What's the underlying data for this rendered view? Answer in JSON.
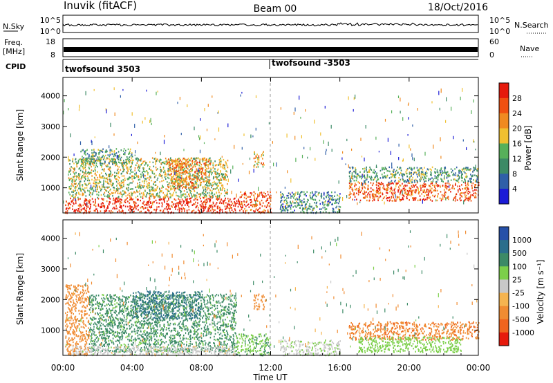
{
  "header": {
    "station": "Inuvik (fitACF)",
    "beam": "Beam 00",
    "date": "18/Oct/2016"
  },
  "strips": {
    "nsky_label": "N.Sky",
    "nsky_ticks": [
      "10^5",
      "10^0"
    ],
    "nsearch_label": "N.Search",
    "freq_label_1": "Freq.",
    "freq_label_2": "[MHz]",
    "freq_ticks": [
      "18",
      "8"
    ],
    "nave_label": "Nave",
    "nave_ticks": [
      "60",
      "0"
    ],
    "cpid_label": "CPID",
    "cpid_segments": [
      "twofsound 3503",
      "twofsound -3503"
    ]
  },
  "colors": {
    "power": [
      "#1b1bd6",
      "#2f5fa8",
      "#3c8a66",
      "#57b05a",
      "#f0c030",
      "#f08a20",
      "#f05010",
      "#e61a0c"
    ],
    "velocity": [
      "#e61a0c",
      "#f0641e",
      "#f08c32",
      "#f5b450",
      "#c8c8c8",
      "#7ccf4a",
      "#3c8a66",
      "#2a6e8c",
      "#2650a8"
    ]
  },
  "chart_data": [
    {
      "type": "heatmap",
      "name": "power",
      "ylabel": "Slant Range [km]",
      "ylim": [
        180,
        4600
      ],
      "yticks": [
        1000,
        2000,
        3000,
        4000
      ],
      "xlim": [
        0,
        24
      ],
      "xticks": [
        "00:00",
        "04:00",
        "08:00",
        "12:00",
        "16:00",
        "20:00",
        "00:00"
      ],
      "colorbar": {
        "label": "Power [dB]",
        "range": [
          0,
          32
        ],
        "ticks": [
          4,
          8,
          12,
          16,
          20,
          24,
          28
        ]
      },
      "regions": [
        {
          "t0": 0.1,
          "t1": 10.2,
          "r0": 200,
          "r1": 700,
          "level": 30
        },
        {
          "t0": 0.3,
          "t1": 9.5,
          "r0": 700,
          "r1": 2000,
          "level": 16
        },
        {
          "t0": 1.0,
          "t1": 4.0,
          "r0": 1800,
          "r1": 2300,
          "level": 12
        },
        {
          "t0": 6.0,
          "t1": 8.5,
          "r0": 1000,
          "r1": 2000,
          "level": 22
        },
        {
          "t0": 10.2,
          "t1": 12.0,
          "r0": 200,
          "r1": 900,
          "level": 26
        },
        {
          "t0": 11.0,
          "t1": 11.6,
          "r0": 1700,
          "r1": 2200,
          "level": 20
        },
        {
          "t0": 12.5,
          "t1": 16.0,
          "r0": 200,
          "r1": 900,
          "level": 10
        },
        {
          "t0": 16.5,
          "t1": 24.0,
          "r0": 600,
          "r1": 1200,
          "level": 26
        },
        {
          "t0": 16.5,
          "t1": 24.0,
          "r0": 1200,
          "r1": 1700,
          "level": 12
        }
      ],
      "xlabel": "Time UT"
    },
    {
      "type": "heatmap",
      "name": "velocity",
      "ylabel": "Slant Range [km]",
      "ylim": [
        180,
        4600
      ],
      "yticks": [
        1000,
        2000,
        3000,
        4000
      ],
      "xlim": [
        0,
        24
      ],
      "xticks": [
        "00:00",
        "04:00",
        "08:00",
        "12:00",
        "16:00",
        "20:00",
        "00:00"
      ],
      "xlabel": "Time UT",
      "colorbar": {
        "label": "Velocity [m s⁻¹]",
        "ticks": [
          "1000",
          "500",
          "100",
          "25",
          "-25",
          "-100",
          "-500",
          "-1000"
        ]
      },
      "regions": [
        {
          "t0": 0.1,
          "t1": 1.5,
          "r0": 200,
          "r1": 2500,
          "level": -300
        },
        {
          "t0": 1.5,
          "t1": 10.0,
          "r0": 300,
          "r1": 2200,
          "level": 150
        },
        {
          "t0": 4.0,
          "t1": 8.0,
          "r0": 1400,
          "r1": 2300,
          "level": 600
        },
        {
          "t0": 0.5,
          "t1": 10.0,
          "r0": 200,
          "r1": 500,
          "level": 0
        },
        {
          "t0": 10.0,
          "t1": 12.0,
          "r0": 200,
          "r1": 900,
          "level": 80
        },
        {
          "t0": 11.0,
          "t1": 11.6,
          "r0": 1700,
          "r1": 2200,
          "level": -200
        },
        {
          "t0": 12.5,
          "t1": 16.0,
          "r0": 200,
          "r1": 700,
          "level": 10
        },
        {
          "t0": 16.5,
          "t1": 24.0,
          "r0": 700,
          "r1": 1300,
          "level": -400
        },
        {
          "t0": 17.0,
          "t1": 23.0,
          "r0": 300,
          "r1": 800,
          "level": 60
        }
      ]
    }
  ]
}
